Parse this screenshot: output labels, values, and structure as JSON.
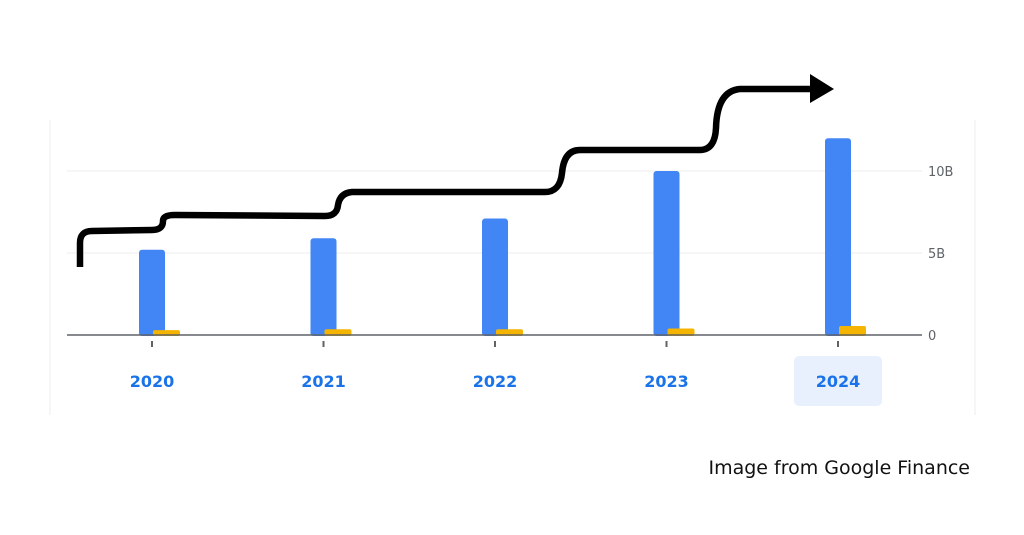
{
  "chart_data": {
    "type": "bar",
    "categories": [
      "2020",
      "2021",
      "2022",
      "2023",
      "2024"
    ],
    "series": [
      {
        "values": [
          5.2,
          5.9,
          7.1,
          10.0,
          12.0
        ],
        "color": "#4285f4"
      },
      {
        "values": [
          0.3,
          0.35,
          0.35,
          0.4,
          0.55
        ],
        "color": "#f4b400"
      }
    ],
    "y_ticks": [
      "0",
      "5B",
      "10B"
    ],
    "ylim": [
      0,
      12.5
    ],
    "y_unit": "B",
    "selected_category": "2024",
    "grid": true,
    "annotation": "black step-shaped arrow rising left to right above the bars"
  },
  "caption": "Image from Google Finance",
  "colors": {
    "axis_text": "#5f6368",
    "category_text": "#1a73e8",
    "selected_highlight": "#e8f0fe",
    "arrow": "#000000"
  }
}
